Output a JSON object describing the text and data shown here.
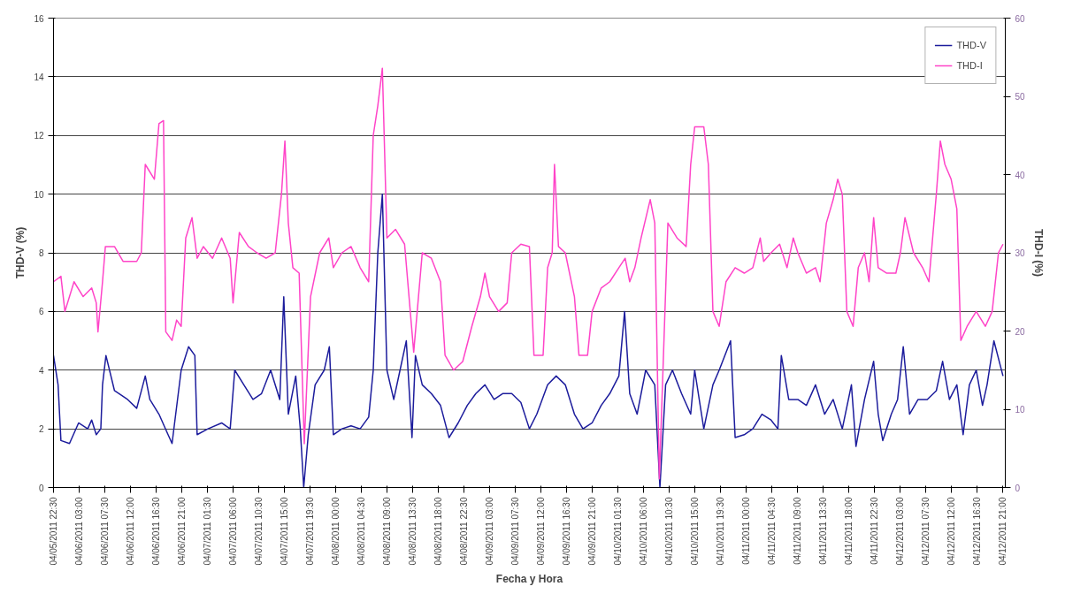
{
  "chart_data": {
    "type": "line",
    "xlabel": "Fecha y Hora",
    "ylabel": "THD-V (%)",
    "y2label": "THD-I (%)",
    "xlim": [
      "2011-04-05T22:30",
      "2011-04-12T21:30"
    ],
    "xticks": [
      {
        "value": "2011-04-05T22:30",
        "label": "04/05/2011 22:30"
      },
      {
        "value": "2011-04-06T03:00",
        "label": "04/06/2011 03:00"
      },
      {
        "value": "2011-04-06T07:30",
        "label": "04/06/2011 07:30"
      },
      {
        "value": "2011-04-06T12:00",
        "label": "04/06/2011 12:00"
      },
      {
        "value": "2011-04-06T16:30",
        "label": "04/06/2011 16:30"
      },
      {
        "value": "2011-04-06T21:00",
        "label": "04/06/2011 21:00"
      },
      {
        "value": "2011-04-07T01:30",
        "label": "04/07/2011 01:30"
      },
      {
        "value": "2011-04-07T06:00",
        "label": "04/07/2011 06:00"
      },
      {
        "value": "2011-04-07T10:30",
        "label": "04/07/2011 10:30"
      },
      {
        "value": "2011-04-07T15:00",
        "label": "04/07/2011 15:00"
      },
      {
        "value": "2011-04-07T19:30",
        "label": "04/07/2011 19:30"
      },
      {
        "value": "2011-04-08T00:00",
        "label": "04/08/2011 00:00"
      },
      {
        "value": "2011-04-08T04:30",
        "label": "04/08/2011 04:30"
      },
      {
        "value": "2011-04-08T09:00",
        "label": "04/08/2011 09:00"
      },
      {
        "value": "2011-04-08T13:30",
        "label": "04/08/2011 13:30"
      },
      {
        "value": "2011-04-08T18:00",
        "label": "04/08/2011 18:00"
      },
      {
        "value": "2011-04-08T22:30",
        "label": "04/08/2011 22:30"
      },
      {
        "value": "2011-04-09T03:00",
        "label": "04/09/2011 03:00"
      },
      {
        "value": "2011-04-09T07:30",
        "label": "04/09/2011 07:30"
      },
      {
        "value": "2011-04-09T12:00",
        "label": "04/09/2011 12:00"
      },
      {
        "value": "2011-04-09T16:30",
        "label": "04/09/2011 16:30"
      },
      {
        "value": "2011-04-09T21:00",
        "label": "04/09/2011 21:00"
      },
      {
        "value": "2011-04-10T01:30",
        "label": "04/10/2011 01:30"
      },
      {
        "value": "2011-04-10T06:00",
        "label": "04/10/2011 06:00"
      },
      {
        "value": "2011-04-10T10:30",
        "label": "04/10/2011 10:30"
      },
      {
        "value": "2011-04-10T15:00",
        "label": "04/10/2011 15:00"
      },
      {
        "value": "2011-04-10T19:30",
        "label": "04/10/2011 19:30"
      },
      {
        "value": "2011-04-11T00:00",
        "label": "04/11/2011 00:00"
      },
      {
        "value": "2011-04-11T04:30",
        "label": "04/11/2011 04:30"
      },
      {
        "value": "2011-04-11T09:00",
        "label": "04/11/2011 09:00"
      },
      {
        "value": "2011-04-11T13:30",
        "label": "04/11/2011 13:30"
      },
      {
        "value": "2011-04-11T18:00",
        "label": "04/11/2011 18:00"
      },
      {
        "value": "2011-04-11T22:30",
        "label": "04/11/2011 22:30"
      },
      {
        "value": "2011-04-12T03:00",
        "label": "04/12/2011 03:00"
      },
      {
        "value": "2011-04-12T07:30",
        "label": "04/12/2011 07:30"
      },
      {
        "value": "2011-04-12T12:00",
        "label": "04/12/2011 12:00"
      },
      {
        "value": "2011-04-12T16:30",
        "label": "04/12/2011 16:30"
      },
      {
        "value": "2011-04-12T21:00",
        "label": "04/12/2011 21:00"
      }
    ],
    "ylim": [
      0,
      16
    ],
    "yticks": [
      0,
      2,
      4,
      6,
      8,
      10,
      12,
      14,
      16
    ],
    "y2lim": [
      0,
      60
    ],
    "y2ticks": [
      0,
      10,
      20,
      30,
      40,
      50,
      60
    ],
    "grid": "y",
    "legend": "top right",
    "line_style": "solid",
    "series": [
      {
        "name": "THD-V",
        "color": "#1c1c9c",
        "x": [
          "2011-04-05T22:30",
          "2011-04-05T23:18",
          "2011-04-05T23:48",
          "2011-04-06T01:18",
          "2011-04-06T02:54",
          "2011-04-06T04:30",
          "2011-04-06T05:12",
          "2011-04-06T06:00",
          "2011-04-06T06:48",
          "2011-04-06T07:06",
          "2011-04-06T07:42",
          "2011-04-06T09:12",
          "2011-04-06T11:30",
          "2011-04-06T13:06",
          "2011-04-06T14:36",
          "2011-04-06T15:24",
          "2011-04-06T17:00",
          "2011-04-06T18:36",
          "2011-04-06T19:18",
          "2011-04-06T20:54",
          "2011-04-06T22:12",
          "2011-04-06T23:18",
          "2011-04-06T23:42",
          "2011-04-07T01:36",
          "2011-04-07T04:00",
          "2011-04-07T05:30",
          "2011-04-07T06:18",
          "2011-04-07T07:54",
          "2011-04-07T09:30",
          "2011-04-07T11:00",
          "2011-04-07T12:36",
          "2011-04-07T14:12",
          "2011-04-07T14:54",
          "2011-04-07T15:42",
          "2011-04-07T17:00",
          "2011-04-07T17:48",
          "2011-04-07T18:24",
          "2011-04-07T19:12",
          "2011-04-07T20:24",
          "2011-04-07T22:00",
          "2011-04-07T22:54",
          "2011-04-07T23:36",
          "2011-04-08T01:06",
          "2011-04-08T02:42",
          "2011-04-08T04:18",
          "2011-04-08T05:48",
          "2011-04-08T06:36",
          "2011-04-08T07:24",
          "2011-04-08T08:12",
          "2011-04-08T09:00",
          "2011-04-08T10:12",
          "2011-04-08T11:18",
          "2011-04-08T12:24",
          "2011-04-08T13:24",
          "2011-04-08T14:00",
          "2011-04-08T15:12",
          "2011-04-08T16:48",
          "2011-04-08T18:24",
          "2011-04-08T19:54",
          "2011-04-08T21:30",
          "2011-04-08T23:06",
          "2011-04-09T00:36",
          "2011-04-09T02:12",
          "2011-04-09T03:48",
          "2011-04-09T05:18",
          "2011-04-09T06:54",
          "2011-04-09T08:30",
          "2011-04-09T10:00",
          "2011-04-09T11:18",
          "2011-04-09T13:12",
          "2011-04-09T14:42",
          "2011-04-09T16:18",
          "2011-04-09T17:54",
          "2011-04-09T19:24",
          "2011-04-09T21:00",
          "2011-04-09T22:36",
          "2011-04-10T00:06",
          "2011-04-10T01:42",
          "2011-04-10T02:42",
          "2011-04-10T03:36",
          "2011-04-10T04:54",
          "2011-04-10T06:24",
          "2011-04-10T08:00",
          "2011-04-10T08:54",
          "2011-04-10T09:54",
          "2011-04-10T11:06",
          "2011-04-10T12:42",
          "2011-04-10T14:18",
          "2011-04-10T15:00",
          "2011-04-10T16:36",
          "2011-04-10T18:12",
          "2011-04-10T19:18",
          "2011-04-10T21:18",
          "2011-04-10T22:06",
          "2011-04-10T23:42",
          "2011-04-11T01:12",
          "2011-04-11T02:48",
          "2011-04-11T04:24",
          "2011-04-11T05:36",
          "2011-04-11T06:12",
          "2011-04-11T07:30",
          "2011-04-11T09:06",
          "2011-04-11T10:36",
          "2011-04-11T12:12",
          "2011-04-11T13:48",
          "2011-04-11T15:18",
          "2011-04-11T16:54",
          "2011-04-11T18:30",
          "2011-04-11T19:18",
          "2011-04-11T20:48",
          "2011-04-11T22:24",
          "2011-04-11T23:12",
          "2011-04-12T00:00",
          "2011-04-12T01:30",
          "2011-04-12T02:36",
          "2011-04-12T03:36",
          "2011-04-12T04:42",
          "2011-04-12T06:12",
          "2011-04-12T07:48",
          "2011-04-12T09:24",
          "2011-04-12T10:30",
          "2011-04-12T11:42",
          "2011-04-12T13:00",
          "2011-04-12T14:06",
          "2011-04-12T15:12",
          "2011-04-12T16:24",
          "2011-04-12T17:30",
          "2011-04-12T18:18",
          "2011-04-12T19:30",
          "2011-04-12T21:06"
        ],
        "values": [
          4.5,
          3.5,
          1.6,
          1.5,
          2.2,
          2.0,
          2.3,
          1.8,
          2.0,
          3.5,
          4.5,
          3.3,
          3.0,
          2.7,
          3.8,
          3.0,
          2.5,
          1.8,
          1.5,
          4.0,
          4.8,
          4.5,
          1.8,
          2.0,
          2.2,
          2.0,
          4.0,
          3.5,
          3.0,
          3.2,
          4.0,
          3.0,
          6.5,
          2.5,
          3.8,
          2.0,
          0,
          1.8,
          3.5,
          4.0,
          4.8,
          1.8,
          2.0,
          2.1,
          2.0,
          2.4,
          4.0,
          8.0,
          10.0,
          4.0,
          3.0,
          4.0,
          5.0,
          1.7,
          4.5,
          3.5,
          3.2,
          2.8,
          1.7,
          2.2,
          2.8,
          3.2,
          3.5,
          3.0,
          3.2,
          3.2,
          2.9,
          2.0,
          2.5,
          3.5,
          3.8,
          3.5,
          2.5,
          2.0,
          2.2,
          2.8,
          3.2,
          3.8,
          6.0,
          3.2,
          2.5,
          4.0,
          3.5,
          0,
          3.5,
          4.0,
          3.2,
          2.5,
          4.0,
          2.0,
          3.5,
          4.0,
          5.0,
          1.7,
          1.8,
          2.0,
          2.5,
          2.3,
          2.0,
          4.5,
          3.0,
          3.0,
          2.8,
          3.5,
          2.5,
          3.0,
          2.0,
          3.5,
          1.4,
          3.0,
          4.3,
          2.5,
          1.6,
          2.5,
          3.0,
          4.8,
          2.5,
          3.0,
          3.0,
          3.3,
          4.3,
          3.0,
          3.5,
          1.8,
          3.5,
          4.0,
          2.8,
          3.5,
          5.0,
          3.8
        ]
      },
      {
        "name": "THD-I",
        "color": "#ff44c8",
        "axis": "y2",
        "x": [
          "2011-04-05T22:30",
          "2011-04-05T23:48",
          "2011-04-06T00:30",
          "2011-04-06T02:06",
          "2011-04-06T03:42",
          "2011-04-06T05:12",
          "2011-04-06T06:00",
          "2011-04-06T06:18",
          "2011-04-06T07:06",
          "2011-04-06T07:36",
          "2011-04-06T09:12",
          "2011-04-06T10:42",
          "2011-04-06T13:06",
          "2011-04-06T13:54",
          "2011-04-06T14:36",
          "2011-04-06T16:12",
          "2011-04-06T17:00",
          "2011-04-06T17:48",
          "2011-04-06T18:12",
          "2011-04-06T19:18",
          "2011-04-06T20:06",
          "2011-04-06T20:54",
          "2011-04-06T21:42",
          "2011-04-06T22:48",
          "2011-04-06T23:42",
          "2011-04-07T00:48",
          "2011-04-07T02:24",
          "2011-04-07T04:00",
          "2011-04-07T05:30",
          "2011-04-07T06:00",
          "2011-04-07T07:06",
          "2011-04-07T08:42",
          "2011-04-07T10:12",
          "2011-04-07T11:48",
          "2011-04-07T13:24",
          "2011-04-07T14:30",
          "2011-04-07T15:06",
          "2011-04-07T15:42",
          "2011-04-07T16:30",
          "2011-04-07T17:36",
          "2011-04-07T18:30",
          "2011-04-07T19:36",
          "2011-04-07T21:12",
          "2011-04-07T22:48",
          "2011-04-07T23:36",
          "2011-04-08T01:06",
          "2011-04-08T02:42",
          "2011-04-08T04:18",
          "2011-04-08T05:48",
          "2011-04-08T06:36",
          "2011-04-08T07:24",
          "2011-04-08T08:12",
          "2011-04-08T09:00",
          "2011-04-08T10:30",
          "2011-04-08T12:06",
          "2011-04-08T13:42",
          "2011-04-08T15:12",
          "2011-04-08T16:48",
          "2011-04-08T18:24",
          "2011-04-08T19:12",
          "2011-04-08T20:42",
          "2011-04-08T22:18",
          "2011-04-08T23:54",
          "2011-04-09T01:24",
          "2011-04-09T02:12",
          "2011-04-09T03:00",
          "2011-04-09T04:36",
          "2011-04-09T06:06",
          "2011-04-09T06:54",
          "2011-04-09T08:30",
          "2011-04-09T10:00",
          "2011-04-09T10:48",
          "2011-04-09T12:24",
          "2011-04-09T13:12",
          "2011-04-09T14:00",
          "2011-04-09T14:24",
          "2011-04-09T15:06",
          "2011-04-09T16:18",
          "2011-04-09T17:54",
          "2011-04-09T18:42",
          "2011-04-09T20:12",
          "2011-04-09T21:00",
          "2011-04-09T22:36",
          "2011-04-10T00:06",
          "2011-04-10T01:42",
          "2011-04-10T02:48",
          "2011-04-10T03:36",
          "2011-04-10T04:30",
          "2011-04-10T05:36",
          "2011-04-10T07:12",
          "2011-04-10T08:00",
          "2011-04-10T08:48",
          "2011-04-10T10:18",
          "2011-04-10T11:54",
          "2011-04-10T13:30",
          "2011-04-10T14:18",
          "2011-04-10T15:00",
          "2011-04-10T16:36",
          "2011-04-10T17:24",
          "2011-04-10T18:12",
          "2011-04-10T19:18",
          "2011-04-10T20:30",
          "2011-04-10T22:06",
          "2011-04-10T23:42",
          "2011-04-11T01:12",
          "2011-04-11T02:30",
          "2011-04-11T03:06",
          "2011-04-11T04:24",
          "2011-04-11T05:54",
          "2011-04-11T07:12",
          "2011-04-11T08:18",
          "2011-04-11T09:06",
          "2011-04-11T10:36",
          "2011-04-11T12:12",
          "2011-04-11T13:00",
          "2011-04-11T14:06",
          "2011-04-11T15:18",
          "2011-04-11T16:06",
          "2011-04-11T16:54",
          "2011-04-11T17:42",
          "2011-04-11T18:48",
          "2011-04-11T19:42",
          "2011-04-11T20:48",
          "2011-04-11T21:36",
          "2011-04-11T22:24",
          "2011-04-11T23:12",
          "2011-04-12T00:42",
          "2011-04-12T02:18",
          "2011-04-12T03:06",
          "2011-04-12T03:54",
          "2011-04-12T05:24",
          "2011-04-12T07:00",
          "2011-04-12T08:06",
          "2011-04-12T09:24",
          "2011-04-12T10:06",
          "2011-04-12T10:54",
          "2011-04-12T12:00",
          "2011-04-12T13:00",
          "2011-04-12T13:42",
          "2011-04-12T14:48",
          "2011-04-12T16:24",
          "2011-04-12T18:00",
          "2011-04-12T19:12",
          "2011-04-12T20:18",
          "2011-04-12T21:06"
        ],
        "values": [
          26.3,
          27,
          22.5,
          26.3,
          24.4,
          25.5,
          23.6,
          19.9,
          26.3,
          30.8,
          30.8,
          28.9,
          28.9,
          30,
          41.3,
          39.4,
          46.5,
          46.9,
          19.9,
          18.8,
          21.4,
          20.6,
          31.9,
          34.5,
          29.3,
          30.8,
          29.3,
          31.9,
          29.3,
          23.6,
          32.6,
          30.8,
          30,
          29.3,
          30,
          37.5,
          44.3,
          33.8,
          28.1,
          27.4,
          5.6,
          24.4,
          30,
          31.9,
          28.1,
          30,
          30.8,
          28.1,
          26.3,
          45,
          48.8,
          53.6,
          31.9,
          33,
          31.1,
          17.3,
          30,
          29.3,
          26.3,
          16.9,
          15,
          16.1,
          20.6,
          24.4,
          27.4,
          24.4,
          22.5,
          23.6,
          30,
          31.1,
          30.8,
          16.9,
          16.9,
          28.1,
          30,
          41.3,
          30.8,
          30,
          24.4,
          16.9,
          16.9,
          22.5,
          25.5,
          26.3,
          28.1,
          29.3,
          26.3,
          28.1,
          31.9,
          36.8,
          33.8,
          1.1,
          33.8,
          31.9,
          30.8,
          41.3,
          46.1,
          46.1,
          41.3,
          22.5,
          20.6,
          26.3,
          28.1,
          27.4,
          28.1,
          31.9,
          28.9,
          30,
          31.1,
          28.1,
          31.9,
          30,
          27.4,
          28.1,
          26.3,
          33.8,
          36.8,
          39.4,
          37.5,
          22.5,
          20.6,
          28.1,
          30,
          26.3,
          34.5,
          28.1,
          27.4,
          27.4,
          30,
          34.5,
          30,
          28.1,
          26.3,
          37.5,
          44.3,
          41.3,
          39.4,
          35.6,
          18.8,
          20.6,
          22.5,
          20.6,
          22.5,
          30,
          31.1
        ]
      }
    ]
  }
}
